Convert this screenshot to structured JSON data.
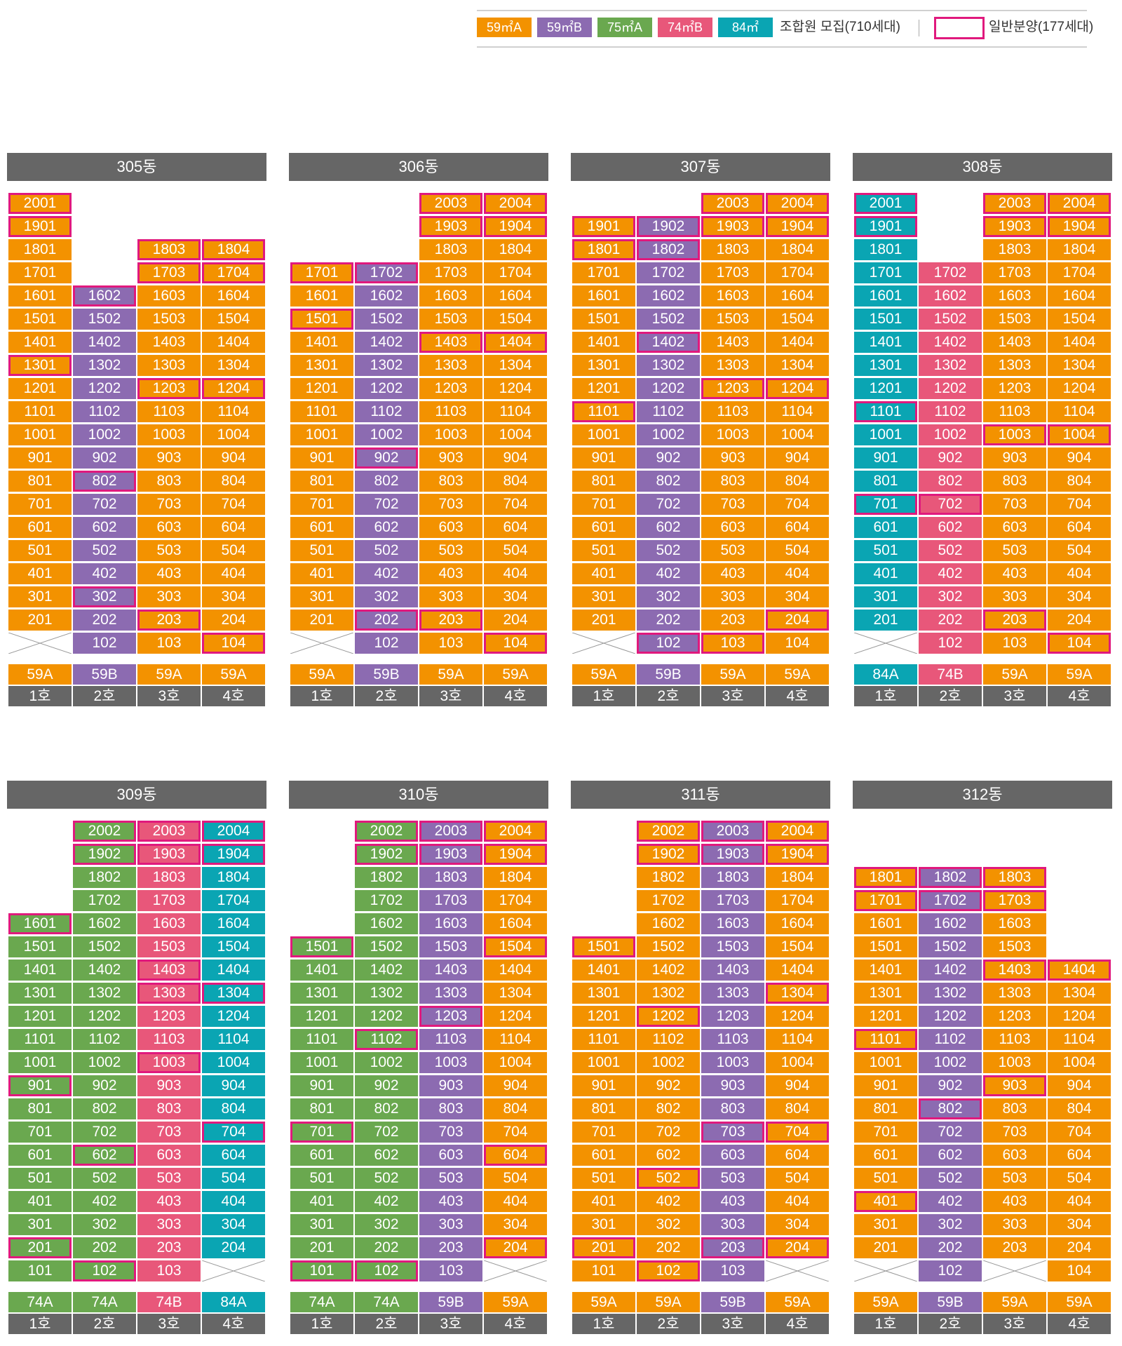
{
  "colors": {
    "59A": "#f39200",
    "59B": "#8c6bb1",
    "75A": "#6aa84f",
    "74A": "#6aa84f",
    "74B": "#e8577a",
    "84A": "#0aa5b3",
    "sale_border": "#e0197d",
    "header": "#666666"
  },
  "legend": {
    "items": [
      {
        "label": "59㎡A",
        "key": "59A"
      },
      {
        "label": "59㎡B",
        "key": "59B"
      },
      {
        "label": "75㎡A",
        "key": "75A"
      },
      {
        "label": "74㎡B",
        "key": "74B"
      },
      {
        "label": "84㎡",
        "key": "84A"
      }
    ],
    "union_label": "조합원 모집(710세대)",
    "general_label": "일반분양(177세대)"
  },
  "buildings": [
    {
      "name": "305동",
      "types": [
        "59A",
        "59B",
        "59A",
        "59A"
      ],
      "units": [
        "1호",
        "2호",
        "3호",
        "4호"
      ],
      "top": [
        20,
        16,
        18,
        18
      ],
      "bottom": [
        2,
        1,
        1,
        1
      ],
      "cross": [
        true,
        false,
        false,
        false
      ],
      "sale": [
        "2001",
        "1901",
        "1803",
        "1804",
        "1703",
        "1704",
        "1602",
        "1301",
        "1203",
        "1204",
        "802",
        "302",
        "203",
        "104"
      ]
    },
    {
      "name": "306동",
      "types": [
        "59A",
        "59B",
        "59A",
        "59A"
      ],
      "units": [
        "1호",
        "2호",
        "3호",
        "4호"
      ],
      "top": [
        17,
        17,
        20,
        20
      ],
      "bottom": [
        2,
        1,
        1,
        1
      ],
      "cross": [
        true,
        false,
        false,
        false
      ],
      "sale": [
        "2003",
        "2004",
        "1903",
        "1904",
        "1701",
        "1702",
        "1501",
        "1403",
        "1404",
        "902",
        "202",
        "203",
        "104"
      ]
    },
    {
      "name": "307동",
      "types": [
        "59A",
        "59B",
        "59A",
        "59A"
      ],
      "units": [
        "1호",
        "2호",
        "3호",
        "4호"
      ],
      "top": [
        19,
        19,
        20,
        20
      ],
      "bottom": [
        2,
        1,
        1,
        1
      ],
      "cross": [
        true,
        false,
        false,
        false
      ],
      "sale": [
        "2003",
        "2004",
        "1901",
        "1902",
        "1903",
        "1904",
        "1801",
        "1802",
        "1402",
        "1203",
        "1204",
        "1101",
        "204",
        "102",
        "103"
      ]
    },
    {
      "name": "308동",
      "types": [
        "84A",
        "74B",
        "59A",
        "59A"
      ],
      "units": [
        "1호",
        "2호",
        "3호",
        "4호"
      ],
      "top": [
        20,
        17,
        20,
        20
      ],
      "bottom": [
        2,
        1,
        1,
        1
      ],
      "cross": [
        true,
        false,
        false,
        false
      ],
      "sale": [
        "2001",
        "1901",
        "2003",
        "2004",
        "1903",
        "1904",
        "1101",
        "1003",
        "1004",
        "701",
        "702",
        "203",
        "104"
      ]
    },
    {
      "name": "309동",
      "types": [
        "74A",
        "74A",
        "74B",
        "84A"
      ],
      "units": [
        "1호",
        "2호",
        "3호",
        "4호"
      ],
      "top": [
        16,
        20,
        20,
        20
      ],
      "bottom": [
        1,
        1,
        1,
        2
      ],
      "cross": [
        false,
        false,
        false,
        true
      ],
      "sale": [
        "2002",
        "2003",
        "2004",
        "1902",
        "1903",
        "1904",
        "1601",
        "1403",
        "1303",
        "1304",
        "1003",
        "901",
        "704",
        "602",
        "201",
        "102"
      ]
    },
    {
      "name": "310동",
      "types": [
        "74A",
        "74A",
        "59B",
        "59A"
      ],
      "units": [
        "1호",
        "2호",
        "3호",
        "4호"
      ],
      "top": [
        15,
        20,
        20,
        20
      ],
      "bottom": [
        1,
        1,
        1,
        2
      ],
      "cross": [
        false,
        false,
        false,
        true
      ],
      "sale": [
        "2002",
        "2003",
        "2004",
        "1902",
        "1903",
        "1904",
        "1501",
        "1504",
        "1203",
        "1102",
        "701",
        "604",
        "204",
        "101",
        "102"
      ]
    },
    {
      "name": "311동",
      "types": [
        "59A",
        "59A",
        "59B",
        "59A"
      ],
      "units": [
        "1호",
        "2호",
        "3호",
        "4호"
      ],
      "top": [
        15,
        20,
        20,
        20
      ],
      "bottom": [
        1,
        1,
        1,
        2
      ],
      "cross": [
        false,
        false,
        false,
        true
      ],
      "sale": [
        "2002",
        "2003",
        "2004",
        "1902",
        "1903",
        "1904",
        "1501",
        "1304",
        "1202",
        "703",
        "704",
        "502",
        "201",
        "203",
        "204",
        "102"
      ]
    },
    {
      "name": "312동",
      "types": [
        "59A",
        "59B",
        "59A",
        "59A"
      ],
      "units": [
        "1호",
        "2호",
        "3호",
        "4호"
      ],
      "top": [
        18,
        18,
        18,
        14
      ],
      "bottom": [
        2,
        1,
        2,
        1
      ],
      "cross": [
        true,
        false,
        true,
        false
      ],
      "sale": [
        "1801",
        "1802",
        "1803",
        "1701",
        "1702",
        "1703",
        "1403",
        "1404",
        "1101",
        "903",
        "802",
        "401"
      ]
    }
  ]
}
